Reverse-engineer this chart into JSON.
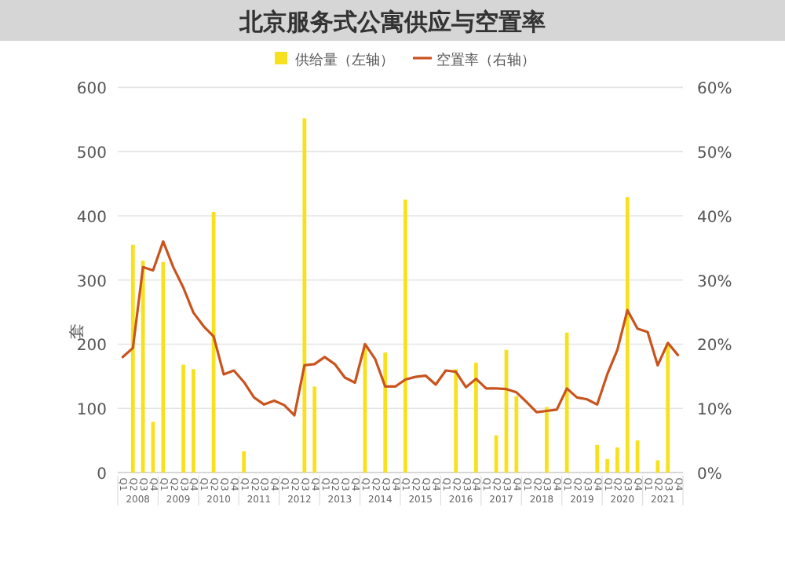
{
  "chart_data": {
    "type": "bar",
    "title": "北京服务式公寓供应与空置率",
    "ylabel": "套",
    "categories": [
      "Q1",
      "Q2",
      "Q3",
      "Q4",
      "Q1",
      "Q2",
      "Q3",
      "Q4",
      "Q1",
      "Q2",
      "Q3",
      "Q4",
      "Q1",
      "Q2",
      "Q3",
      "Q4",
      "Q1",
      "Q2",
      "Q3",
      "Q4",
      "Q1",
      "Q2",
      "Q3",
      "Q4",
      "Q1",
      "Q2",
      "Q3",
      "Q4",
      "Q1",
      "Q2",
      "Q3",
      "Q4",
      "Q1",
      "Q2",
      "Q3",
      "Q4",
      "Q1",
      "Q2",
      "Q3",
      "Q4",
      "Q1",
      "Q2",
      "Q3",
      "Q4",
      "Q1",
      "Q2",
      "Q3",
      "Q4",
      "Q1",
      "Q2",
      "Q3",
      "Q4",
      "Q1",
      "Q2",
      "Q3",
      "Q4"
    ],
    "series": [
      {
        "name": "供给量（左轴）",
        "color": "#f7e11e",
        "values": [
          0,
          355,
          330,
          79,
          328,
          0,
          168,
          161,
          0,
          406,
          0,
          0,
          33,
          0,
          0,
          0,
          0,
          0,
          552,
          134,
          0,
          0,
          0,
          0,
          200,
          0,
          187,
          0,
          425,
          0,
          0,
          0,
          0,
          161,
          0,
          171,
          0,
          58,
          191,
          119,
          0,
          0,
          102,
          0,
          218,
          0,
          0,
          43,
          21,
          39,
          429,
          50,
          0,
          19,
          200,
          0
        ]
      },
      {
        "name": "空置率（右轴）",
        "type": "line",
        "axis": "y2",
        "color": "#c9531d",
        "values": [
          18.0,
          19.4,
          32.0,
          31.5,
          36.0,
          32.0,
          28.8,
          24.9,
          22.8,
          21.2,
          15.3,
          15.9,
          14.1,
          11.7,
          10.6,
          11.2,
          10.5,
          8.9,
          16.7,
          16.9,
          18.0,
          16.9,
          14.8,
          14.0,
          20.0,
          17.7,
          13.4,
          13.4,
          14.5,
          14.9,
          15.1,
          13.7,
          15.9,
          15.7,
          13.3,
          14.6,
          13.1,
          13.1,
          13.0,
          12.5,
          11.0,
          9.4,
          9.6,
          9.8,
          13.1,
          11.7,
          11.4,
          10.6,
          15.3,
          19.1,
          25.3,
          22.4,
          21.9,
          16.7,
          20.2,
          18.3
        ]
      }
    ],
    "ylim": [
      0,
      600
    ],
    "yticks": [
      0,
      100,
      200,
      300,
      400,
      500,
      600
    ],
    "y2lim": [
      0,
      60
    ],
    "y2ticks": [
      {
        "value": 0,
        "label": "0%"
      },
      {
        "value": 10,
        "label": "10%"
      },
      {
        "value": 20,
        "label": "20%"
      },
      {
        "value": 30,
        "label": "30%"
      },
      {
        "value": 40,
        "label": "40%"
      },
      {
        "value": 50,
        "label": "50%"
      },
      {
        "value": 60,
        "label": "60%"
      }
    ],
    "grid": "y",
    "legend": "top",
    "annotations": [
      "2008",
      "2009",
      "2010",
      "2011",
      "2012",
      "2013",
      "2014",
      "2015",
      "2016",
      "2017",
      "2018",
      "2019",
      "2020",
      "2021"
    ]
  }
}
